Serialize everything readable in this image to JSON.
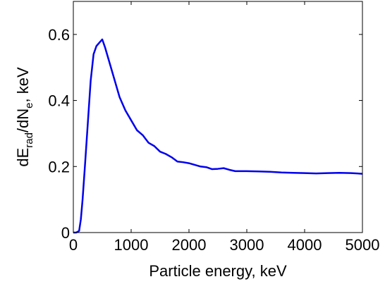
{
  "chart_data": {
    "type": "line",
    "xlabel": "Particle energy, keV",
    "ylabel": {
      "prefix": "dE",
      "sub1": "rad",
      "middle": "/dN",
      "sub2": "e",
      "suffix": ", keV"
    },
    "xlim": [
      0,
      5000
    ],
    "ylim": [
      0,
      0.7
    ],
    "xticks": [
      0,
      1000,
      2000,
      3000,
      4000,
      5000
    ],
    "xtick_labels": [
      "0",
      "1000",
      "2000",
      "3000",
      "4000",
      "5000"
    ],
    "yticks": [
      0,
      0.2,
      0.4,
      0.6
    ],
    "ytick_labels": [
      "0",
      "0.2",
      "0.4",
      "0.6"
    ],
    "grid": false,
    "series": [
      {
        "color": "#0000ee",
        "x": [
          0,
          50,
          100,
          130,
          160,
          200,
          250,
          300,
          350,
          400,
          450,
          500,
          550,
          600,
          700,
          800,
          900,
          1000,
          1100,
          1200,
          1300,
          1400,
          1500,
          1600,
          1700,
          1800,
          1900,
          2000,
          2100,
          2200,
          2300,
          2400,
          2500,
          2600,
          2700,
          2800,
          3000,
          3200,
          3400,
          3600,
          3800,
          4000,
          4200,
          4400,
          4600,
          4800,
          5000
        ],
        "y": [
          0,
          0,
          0.005,
          0.04,
          0.1,
          0.2,
          0.33,
          0.46,
          0.54,
          0.565,
          0.575,
          0.585,
          0.56,
          0.53,
          0.47,
          0.41,
          0.37,
          0.34,
          0.31,
          0.295,
          0.272,
          0.262,
          0.245,
          0.238,
          0.228,
          0.215,
          0.213,
          0.21,
          0.205,
          0.2,
          0.198,
          0.192,
          0.193,
          0.195,
          0.19,
          0.186,
          0.186,
          0.185,
          0.184,
          0.182,
          0.181,
          0.18,
          0.179,
          0.18,
          0.181,
          0.18,
          0.178
        ]
      }
    ]
  }
}
